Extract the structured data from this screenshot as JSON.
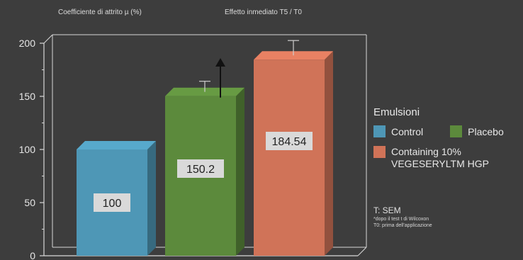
{
  "header": {
    "left": "Coefficiente di attrito µ (%)",
    "right": "Effetto inmediato T5 / T0"
  },
  "chart_data": {
    "type": "bar",
    "categories": [
      "Control",
      "Placebo",
      "Containing 10% VEGESERYLTM HGP"
    ],
    "values": [
      100,
      150.2,
      184.54
    ],
    "value_labels": [
      "100",
      "150.2",
      "184.54"
    ],
    "errors": [
      0,
      14,
      18
    ],
    "colors": [
      "#4e97b6",
      "#5c8a3c",
      "#d07358"
    ],
    "ylim": [
      0,
      200
    ],
    "yticks": [
      "0",
      "50",
      "100",
      "150",
      "200"
    ],
    "grid": false,
    "legend_position": "right"
  },
  "legend": {
    "title": "Emulsioni",
    "control": "Control",
    "placebo": "Placebo",
    "containing_line1": "Containing 10%",
    "containing_line2": "VEGESERYLTM HGP"
  },
  "notes": {
    "sem": "T: SEM",
    "wilcoxon": "*dopo il test t di Wilcoxon",
    "t0": "T0: prima dell'applicazione"
  }
}
